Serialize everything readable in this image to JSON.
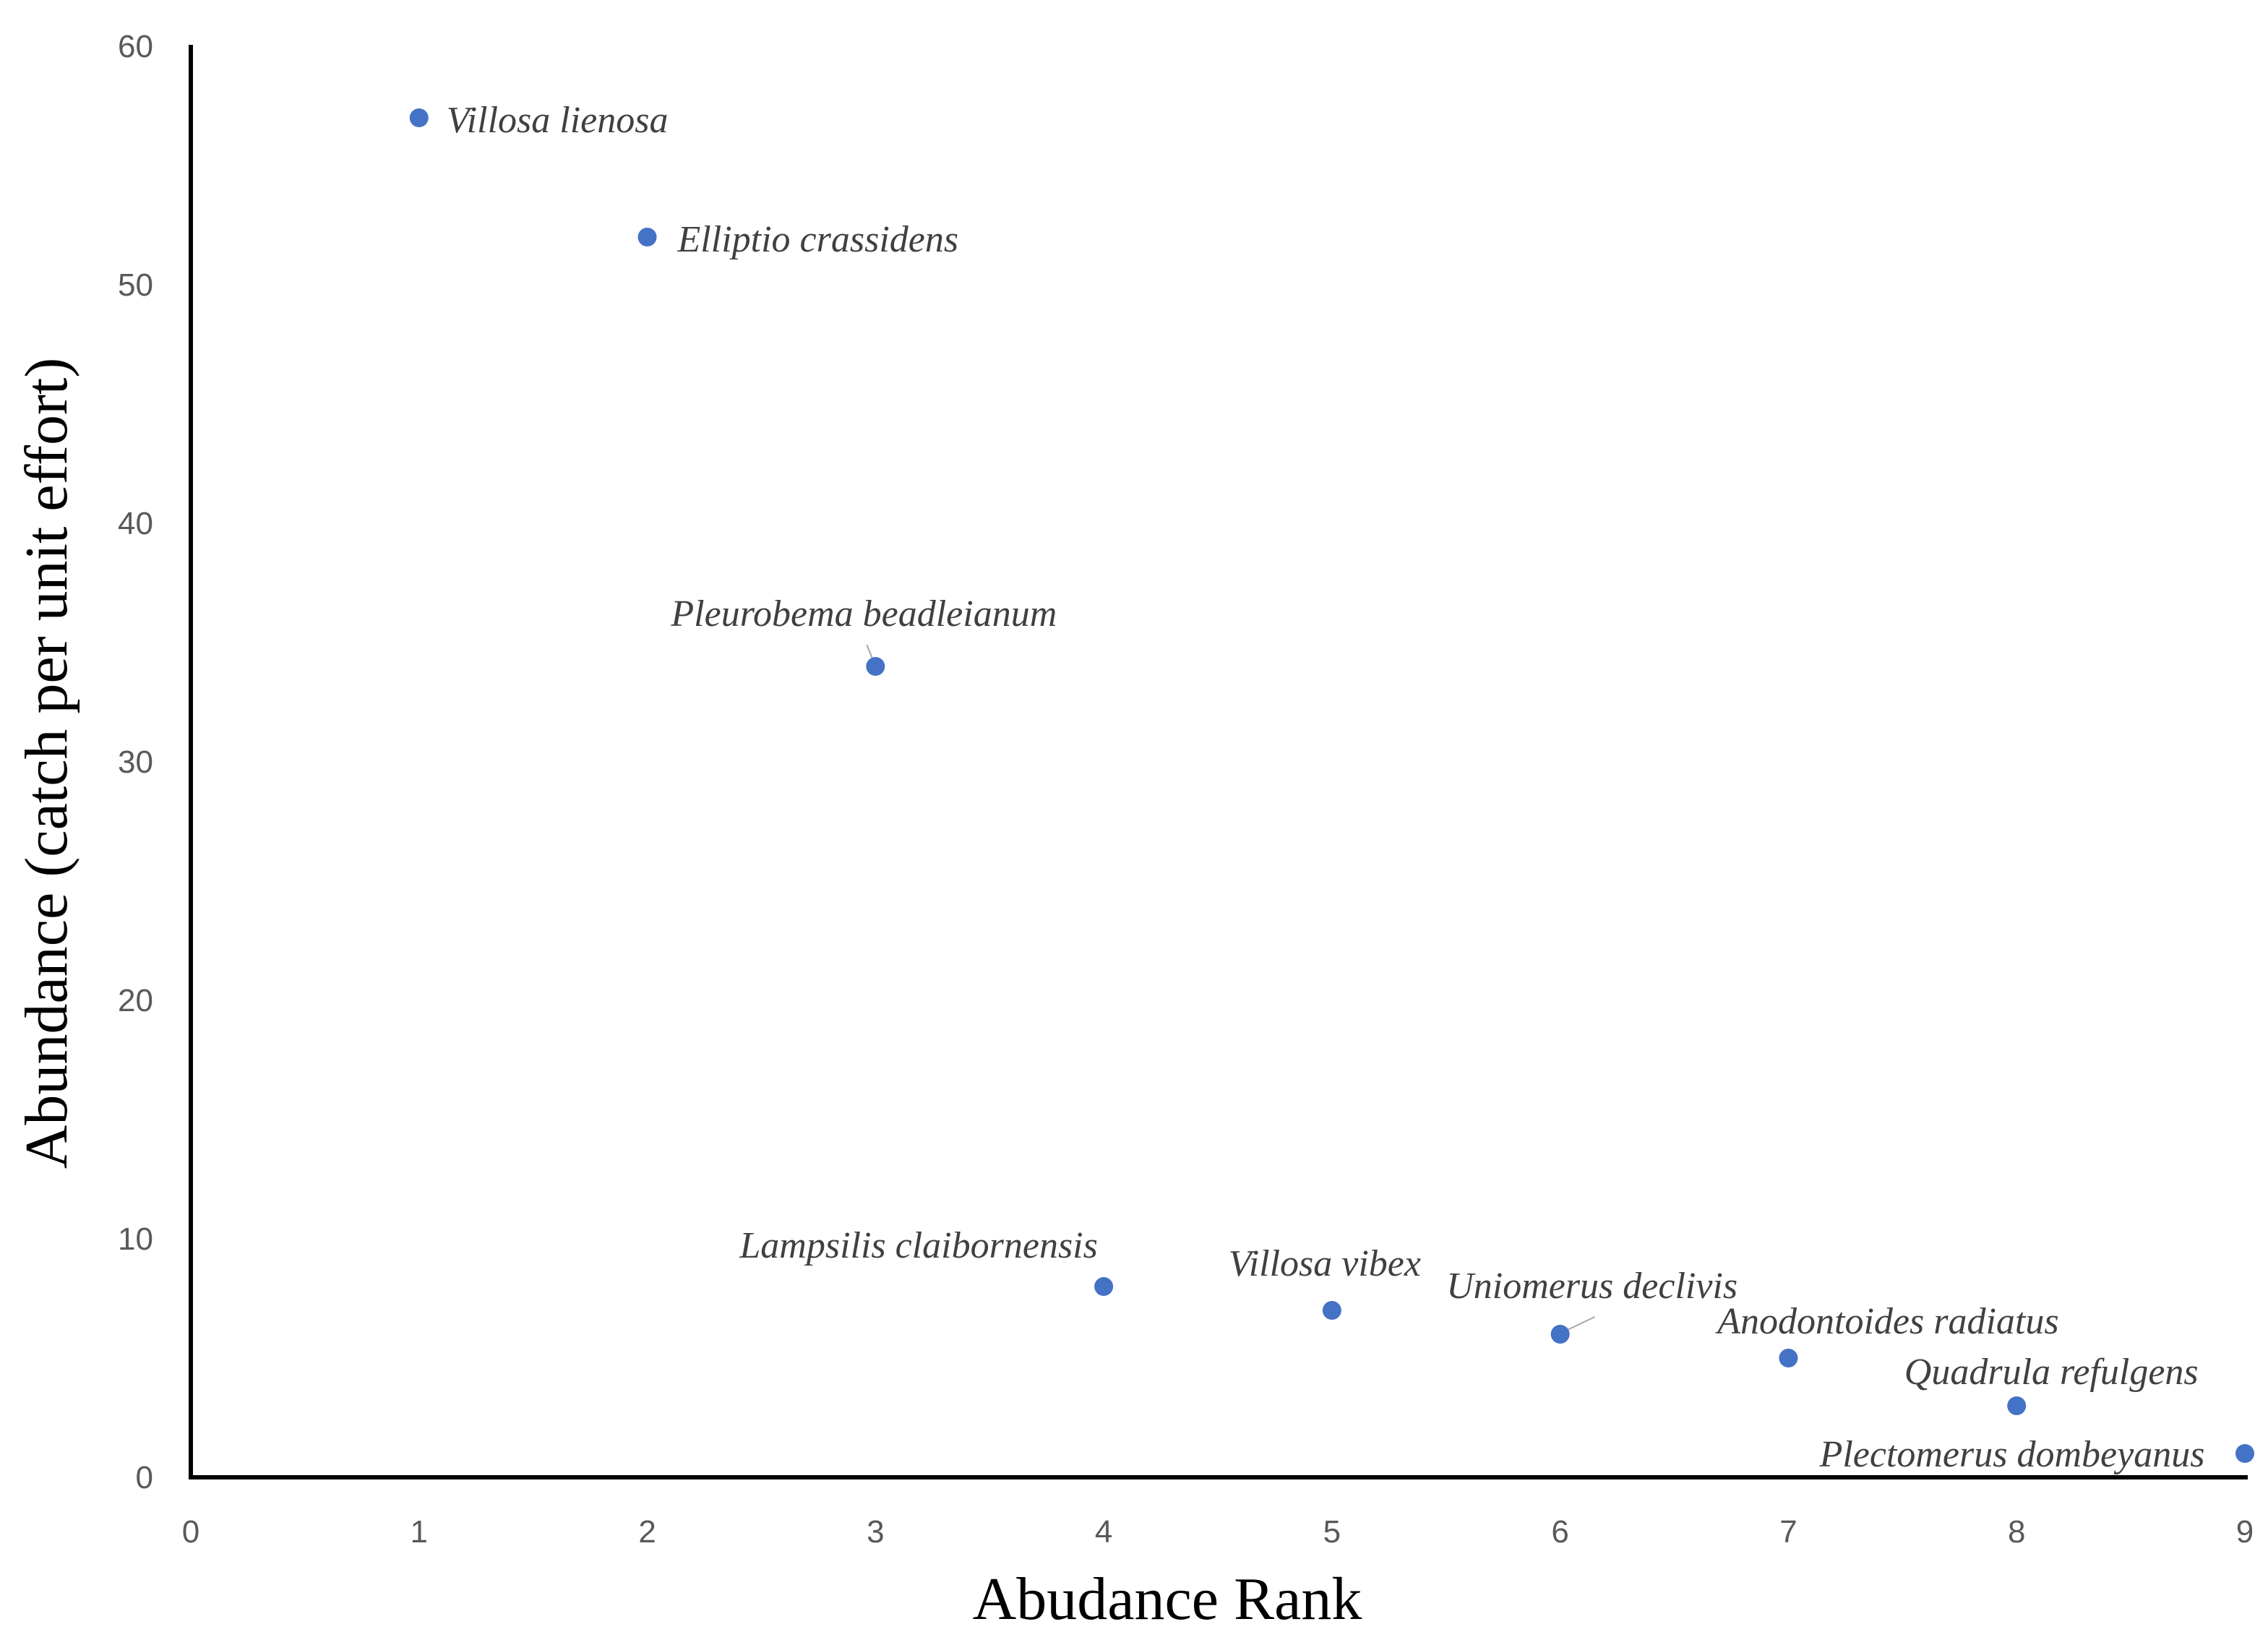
{
  "chart_data": {
    "type": "scatter",
    "title": "",
    "xlabel": "Abudance Rank",
    "ylabel": "Abundance (catch per unit effort)",
    "xlim": [
      0,
      9
    ],
    "ylim": [
      0,
      60
    ],
    "xticks": [
      "0",
      "1",
      "2",
      "3",
      "4",
      "5",
      "6",
      "7",
      "8",
      "9"
    ],
    "yticks": [
      "0",
      "10",
      "20",
      "30",
      "40",
      "50",
      "60"
    ],
    "grid": false,
    "legend": "none",
    "marker_color": "#4472C4",
    "points": [
      {
        "x": 1,
        "y": 57,
        "label": "Villosa lienosa"
      },
      {
        "x": 2,
        "y": 52,
        "label": "Elliptio crassidens"
      },
      {
        "x": 3,
        "y": 34,
        "label": "Pleurobema beadleianum"
      },
      {
        "x": 4,
        "y": 8,
        "label": "Lampsilis claibornensis"
      },
      {
        "x": 5,
        "y": 7,
        "label": "Villosa vibex"
      },
      {
        "x": 6,
        "y": 6,
        "label": "Uniomerus declivis"
      },
      {
        "x": 7,
        "y": 5,
        "label": "Anodontoides radiatus"
      },
      {
        "x": 8,
        "y": 3,
        "label": "Quadrula refulgens"
      },
      {
        "x": 9,
        "y": 1,
        "label": "Plectomerus dombeyanus"
      }
    ]
  }
}
